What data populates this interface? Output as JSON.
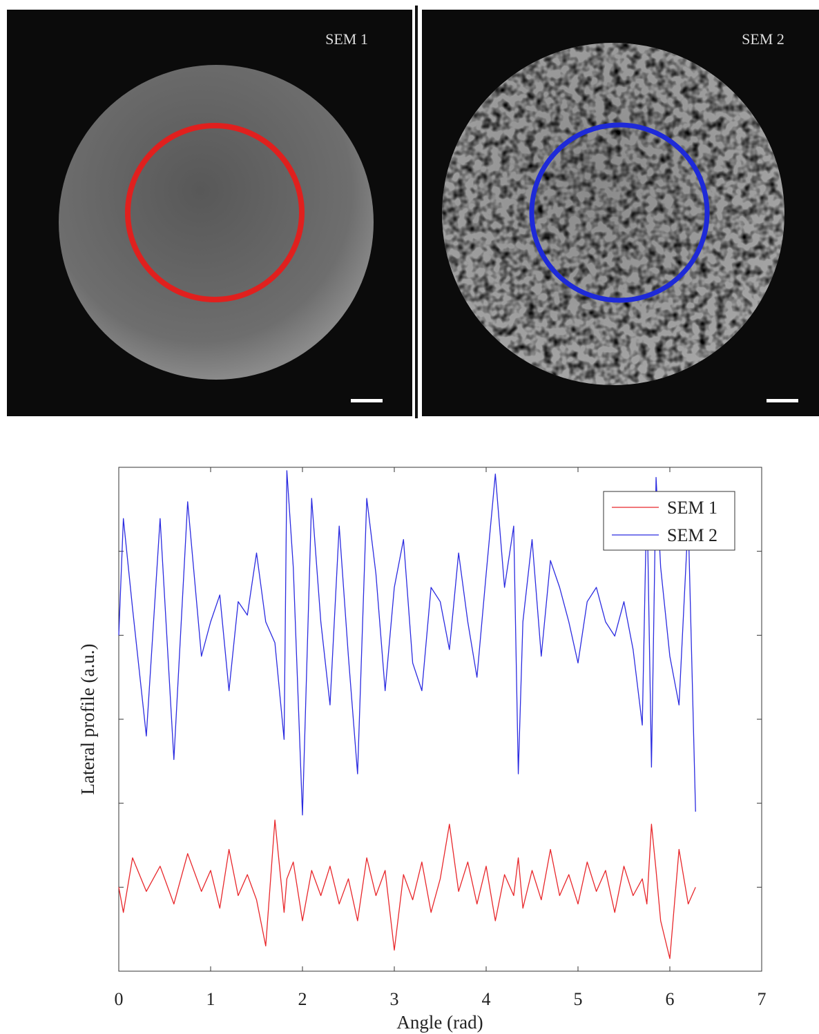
{
  "panels": [
    {
      "label": "SEM 1"
    },
    {
      "label": "SEM 2"
    }
  ],
  "chart_data": {
    "type": "line",
    "xlabel": "Angle (rad)",
    "ylabel": "Lateral profile (a.u.)",
    "xlim": [
      0,
      7
    ],
    "xticks": [
      0,
      1,
      2,
      3,
      4,
      5,
      6,
      7
    ],
    "ylim": [
      0,
      6
    ],
    "yticks": [
      1,
      2,
      3,
      4,
      5
    ],
    "legend": "top-right",
    "x": [
      0,
      0.05,
      0.15,
      0.3,
      0.45,
      0.6,
      0.75,
      0.9,
      1.0,
      1.1,
      1.2,
      1.3,
      1.4,
      1.5,
      1.6,
      1.7,
      1.8,
      1.83,
      1.9,
      2.0,
      2.1,
      2.2,
      2.3,
      2.4,
      2.5,
      2.6,
      2.7,
      2.8,
      2.9,
      3.0,
      3.1,
      3.2,
      3.3,
      3.4,
      3.5,
      3.6,
      3.7,
      3.8,
      3.9,
      4.0,
      4.1,
      4.2,
      4.3,
      4.35,
      4.4,
      4.5,
      4.6,
      4.7,
      4.8,
      4.9,
      5.0,
      5.1,
      5.2,
      5.3,
      5.4,
      5.5,
      5.6,
      5.7,
      5.75,
      5.8,
      5.85,
      5.9,
      6.0,
      6.1,
      6.2,
      6.28
    ],
    "series": [
      {
        "name": "SEM 1",
        "color": "#e8262a",
        "values": [
          1.0,
          0.7,
          1.35,
          0.95,
          1.25,
          0.8,
          1.4,
          0.95,
          1.2,
          0.75,
          1.45,
          0.9,
          1.15,
          0.85,
          0.3,
          1.8,
          0.7,
          1.1,
          1.3,
          0.6,
          1.2,
          0.9,
          1.25,
          0.8,
          1.1,
          0.6,
          1.35,
          0.9,
          1.2,
          0.25,
          1.15,
          0.85,
          1.3,
          0.7,
          1.1,
          1.75,
          0.95,
          1.3,
          0.8,
          1.25,
          0.6,
          1.15,
          0.9,
          1.35,
          0.75,
          1.2,
          0.85,
          1.45,
          0.9,
          1.15,
          0.8,
          1.3,
          0.95,
          1.2,
          0.7,
          1.25,
          0.9,
          1.1,
          0.8,
          1.75,
          1.2,
          0.6,
          0.15,
          1.45,
          0.8,
          1.0
        ]
      },
      {
        "name": "SEM 2",
        "color": "#2a2ae0",
        "values": [
          4.0,
          5.39,
          4.32,
          2.8,
          5.39,
          2.52,
          5.59,
          3.75,
          4.16,
          4.48,
          3.34,
          4.4,
          4.24,
          4.98,
          4.16,
          3.91,
          2.76,
          5.96,
          4.81,
          1.86,
          5.63,
          4.16,
          3.17,
          5.3,
          3.75,
          2.35,
          5.63,
          4.73,
          3.34,
          4.57,
          5.14,
          3.67,
          3.34,
          4.57,
          4.4,
          3.83,
          4.98,
          4.16,
          3.5,
          4.73,
          5.92,
          4.57,
          5.3,
          2.35,
          4.16,
          5.14,
          3.75,
          4.89,
          4.57,
          4.16,
          3.67,
          4.4,
          4.57,
          4.16,
          3.99,
          4.4,
          3.83,
          2.93,
          5.71,
          2.43,
          5.88,
          4.81,
          3.75,
          3.17,
          5.39,
          1.9
        ]
      }
    ]
  }
}
